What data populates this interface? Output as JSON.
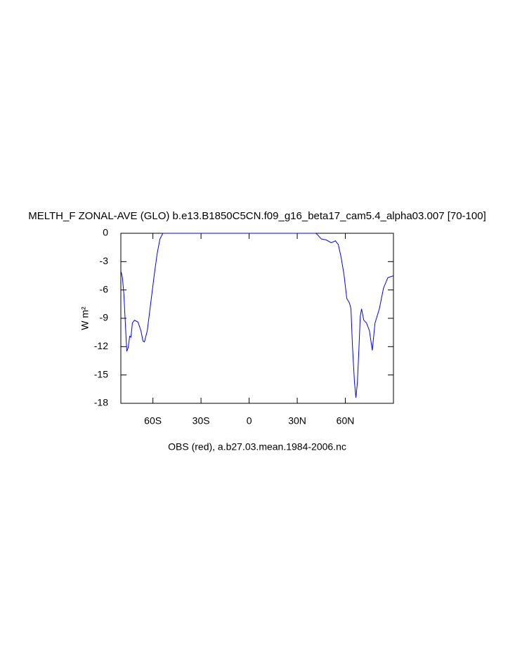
{
  "chart_data": {
    "type": "line",
    "title": "MELTH_F ZONAL-AVE (GLO) b.e13.B1850C5CN.f09_g16_beta17_cam5.4_alpha03.007 [70-100]",
    "x_label": "OBS (red), a.b27.03.mean.1984-2006.nc",
    "y_label": "W m²",
    "xlim": [
      -80,
      90
    ],
    "ylim": [
      -18,
      0
    ],
    "xticks": [
      {
        "value": -60,
        "label": "60S"
      },
      {
        "value": -30,
        "label": "30S"
      },
      0,
      {
        "value": 30,
        "label": "30N"
      },
      {
        "value": 60,
        "label": "60N"
      }
    ],
    "yticks": [
      0,
      -3,
      -6,
      -9,
      -12,
      -15,
      -18
    ],
    "series": [
      {
        "color": "#0000ff",
        "x": [
          -79.8,
          -79,
          -78.1,
          -77.2,
          -76.3,
          -75.4,
          -74.5,
          -73.7,
          -72.8,
          -71.5,
          -69.3,
          -67.5,
          -66.2,
          -65.3,
          -63.5,
          -61.3,
          -59.1,
          -57.3,
          -55.6,
          -53.8,
          0,
          41.5,
          42.3,
          45,
          48,
          51.2,
          53.8,
          55.6,
          57.3,
          59.1,
          60.9,
          62.6,
          63.5,
          64.4,
          65.7,
          66.6,
          67.5,
          68.4,
          69.3,
          70.1,
          71.5,
          73.2,
          75,
          76.8,
          78.5,
          81.2,
          83.8,
          86.5,
          90
        ],
        "values": [
          -4.1,
          -4.7,
          -6.5,
          -9.5,
          -12.5,
          -12.1,
          -10.9,
          -11,
          -9.5,
          -9.2,
          -9.4,
          -10.3,
          -11.4,
          -11.5,
          -10.3,
          -7.3,
          -4.3,
          -2.1,
          -0.6,
          0,
          0,
          0,
          -0.1,
          -0.6,
          -0.7,
          -1,
          -0.8,
          -1.2,
          -2.5,
          -4.3,
          -6.9,
          -7.4,
          -8,
          -11.8,
          -15.8,
          -17.4,
          -15.8,
          -12.5,
          -8.8,
          -8,
          -9.2,
          -9.5,
          -10.3,
          -12.4,
          -9.5,
          -8,
          -5.8,
          -4.7,
          -4.5
        ]
      }
    ]
  }
}
